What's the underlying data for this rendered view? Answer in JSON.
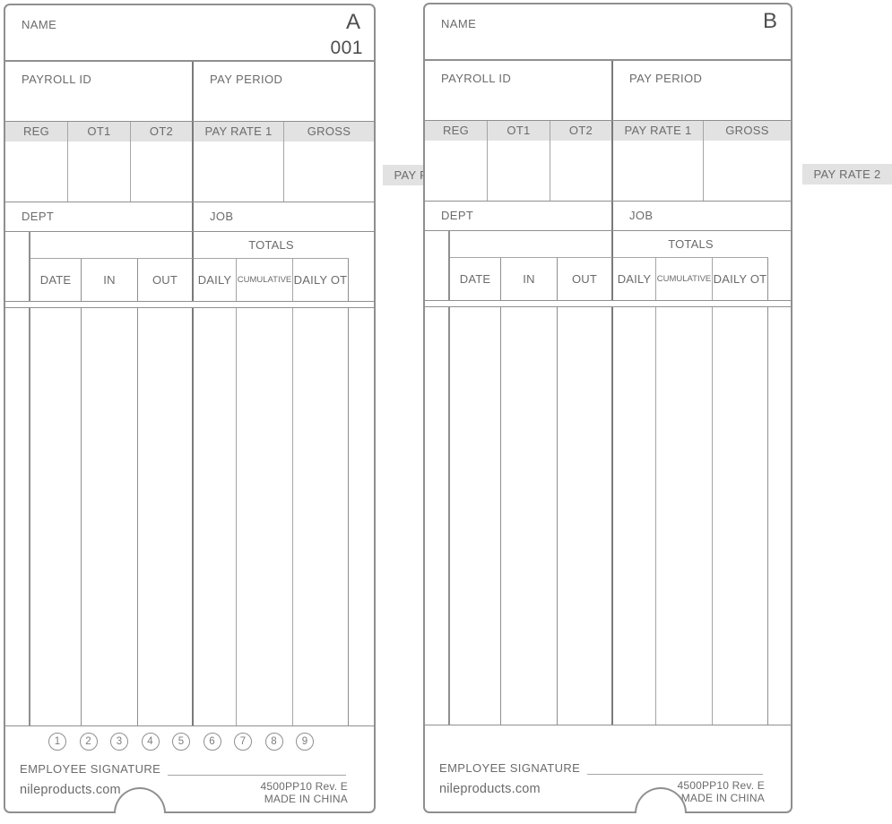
{
  "labels": {
    "name": "NAME",
    "payroll_id": "PAYROLL ID",
    "pay_period": "PAY PERIOD",
    "reg": "REG",
    "ot1": "OT1",
    "ot2": "OT2",
    "pay_rate_1": "PAY RATE 1",
    "pay_rate_2": "PAY RATE 2",
    "gross": "GROSS",
    "dept": "DEPT",
    "job": "JOB",
    "totals": "TOTALS",
    "date": "DATE",
    "in": "IN",
    "out": "OUT",
    "daily": "DAILY",
    "cumulative": "CUMULATIVE",
    "daily_ot": "DAILY OT",
    "employee_signature": "EMPLOYEE SIGNATURE",
    "website": "nileproducts.com",
    "part_number": "4500PP10 Rev. E",
    "made_in": "MADE IN CHINA"
  },
  "cards": {
    "a": {
      "letter": "A",
      "card_number": "001",
      "stamp_numbers": [
        "1",
        "2",
        "3",
        "4",
        "5",
        "6",
        "7",
        "8",
        "9"
      ]
    },
    "b": {
      "letter": "B"
    }
  },
  "colors": {
    "header_band_gray": "#e2e2e2",
    "grid_line_gray": "#8f8f8f",
    "label_text_gray": "#6b6b6b",
    "card_id_text": "#4f4f4f"
  }
}
